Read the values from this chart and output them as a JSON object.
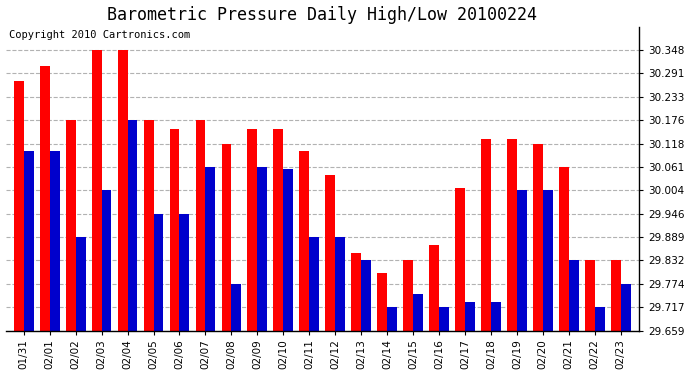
{
  "title": "Barometric Pressure Daily High/Low 20100224",
  "copyright": "Copyright 2010 Cartronics.com",
  "dates": [
    "01/31",
    "02/01",
    "02/02",
    "02/03",
    "02/04",
    "02/05",
    "02/06",
    "02/07",
    "02/08",
    "02/09",
    "02/10",
    "02/11",
    "02/12",
    "02/13",
    "02/14",
    "02/15",
    "02/16",
    "02/17",
    "02/18",
    "02/19",
    "02/20",
    "02/21",
    "02/22",
    "02/23"
  ],
  "highs": [
    30.272,
    30.31,
    30.176,
    30.348,
    30.348,
    30.176,
    30.155,
    30.176,
    30.118,
    30.155,
    30.155,
    30.1,
    30.04,
    29.85,
    29.8,
    29.832,
    29.87,
    30.01,
    30.13,
    30.13,
    30.118,
    30.061,
    29.832,
    29.832
  ],
  "lows": [
    30.1,
    30.1,
    29.889,
    30.004,
    30.176,
    29.946,
    29.946,
    30.061,
    29.774,
    30.061,
    30.055,
    29.889,
    29.889,
    29.832,
    29.717,
    29.75,
    29.717,
    29.73,
    29.73,
    30.004,
    30.004,
    29.832,
    29.717,
    29.774
  ],
  "high_color": "#ff0000",
  "low_color": "#0000cc",
  "background_color": "#ffffff",
  "grid_color": "#aaaaaa",
  "ylim_min": 29.659,
  "ylim_max": 30.406,
  "yticks": [
    29.659,
    29.717,
    29.774,
    29.832,
    29.889,
    29.946,
    30.004,
    30.061,
    30.118,
    30.176,
    30.233,
    30.291,
    30.348
  ],
  "title_fontsize": 12,
  "copyright_fontsize": 7.5,
  "tick_fontsize": 7.5,
  "bar_width": 0.38
}
